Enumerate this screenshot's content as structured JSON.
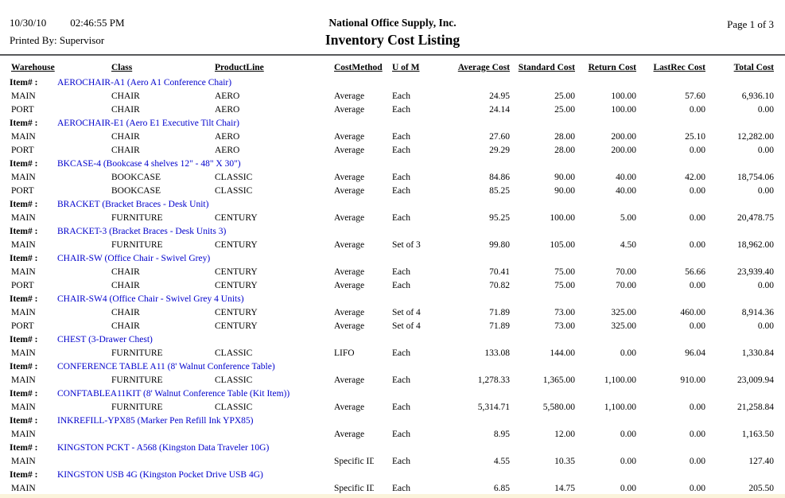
{
  "header": {
    "date": "10/30/10",
    "time": "02:46:55 PM",
    "printed_by": "Printed By: Supervisor",
    "company": "National Office Supply, Inc.",
    "title": "Inventory Cost Listing",
    "page": "Page 1 of 3"
  },
  "colors": {
    "item_link": "#0000CC",
    "rule": "#58595b",
    "bottom_strip": "#FBF3DB"
  },
  "table": {
    "item_label": "Item# :",
    "columns": [
      "Warehouse",
      "Class",
      "ProductLine",
      "CostMethod",
      "U of M",
      "Average Cost",
      "Standard Cost",
      "Return Cost",
      "LastRec Cost",
      "Total Cost"
    ],
    "groups": [
      {
        "item": "AEROCHAIR-A1 (Aero A1 Conference Chair)",
        "rows": [
          [
            "MAIN",
            "CHAIR",
            "AERO",
            "Average",
            "Each",
            "24.95",
            "25.00",
            "100.00",
            "57.60",
            "6,936.10"
          ],
          [
            "PORT",
            "CHAIR",
            "AERO",
            "Average",
            "Each",
            "24.14",
            "25.00",
            "100.00",
            "0.00",
            "0.00"
          ]
        ]
      },
      {
        "item": "AEROCHAIR-E1 (Aero E1 Executive Tilt Chair)",
        "rows": [
          [
            "MAIN",
            "CHAIR",
            "AERO",
            "Average",
            "Each",
            "27.60",
            "28.00",
            "200.00",
            "25.10",
            "12,282.00"
          ],
          [
            "PORT",
            "CHAIR",
            "AERO",
            "Average",
            "Each",
            "29.29",
            "28.00",
            "200.00",
            "0.00",
            "0.00"
          ]
        ]
      },
      {
        "item": "BKCASE-4 (Bookcase 4 shelves 12\" - 48\" X 30\")",
        "rows": [
          [
            "MAIN",
            "BOOKCASE",
            "CLASSIC",
            "Average",
            "Each",
            "84.86",
            "90.00",
            "40.00",
            "42.00",
            "18,754.06"
          ],
          [
            "PORT",
            "BOOKCASE",
            "CLASSIC",
            "Average",
            "Each",
            "85.25",
            "90.00",
            "40.00",
            "0.00",
            "0.00"
          ]
        ]
      },
      {
        "item": "BRACKET (Bracket Braces - Desk Unit)",
        "rows": [
          [
            "MAIN",
            "FURNITURE",
            "CENTURY",
            "Average",
            "Each",
            "95.25",
            "100.00",
            "5.00",
            "0.00",
            "20,478.75"
          ]
        ]
      },
      {
        "item": "BRACKET-3 (Bracket Braces - Desk Units 3)",
        "rows": [
          [
            "MAIN",
            "FURNITURE",
            "CENTURY",
            "Average",
            "Set of 3",
            "99.80",
            "105.00",
            "4.50",
            "0.00",
            "18,962.00"
          ]
        ]
      },
      {
        "item": "CHAIR-SW (Office Chair - Swivel Grey)",
        "rows": [
          [
            "MAIN",
            "CHAIR",
            "CENTURY",
            "Average",
            "Each",
            "70.41",
            "75.00",
            "70.00",
            "56.66",
            "23,939.40"
          ],
          [
            "PORT",
            "CHAIR",
            "CENTURY",
            "Average",
            "Each",
            "70.82",
            "75.00",
            "70.00",
            "0.00",
            "0.00"
          ]
        ]
      },
      {
        "item": "CHAIR-SW4 (Office Chair - Swivel Grey 4 Units)",
        "rows": [
          [
            "MAIN",
            "CHAIR",
            "CENTURY",
            "Average",
            "Set of 4",
            "71.89",
            "73.00",
            "325.00",
            "460.00",
            "8,914.36"
          ],
          [
            "PORT",
            "CHAIR",
            "CENTURY",
            "Average",
            "Set of 4",
            "71.89",
            "73.00",
            "325.00",
            "0.00",
            "0.00"
          ]
        ]
      },
      {
        "item": "CHEST (3-Drawer Chest)",
        "rows": [
          [
            "MAIN",
            "FURNITURE",
            "CLASSIC",
            "LIFO",
            "Each",
            "133.08",
            "144.00",
            "0.00",
            "96.04",
            "1,330.84"
          ]
        ]
      },
      {
        "item": "CONFERENCE TABLE A11 (8' Walnut Conference Table)",
        "rows": [
          [
            "MAIN",
            "FURNITURE",
            "CLASSIC",
            "Average",
            "Each",
            "1,278.33",
            "1,365.00",
            "1,100.00",
            "910.00",
            "23,009.94"
          ]
        ]
      },
      {
        "item": "CONFTABLEA11KIT (8' Walnut Conference Table (Kit Item))",
        "rows": [
          [
            "MAIN",
            "FURNITURE",
            "CLASSIC",
            "Average",
            "Each",
            "5,314.71",
            "5,580.00",
            "1,100.00",
            "0.00",
            "21,258.84"
          ]
        ]
      },
      {
        "item": "INKREFILL-YPX85 (Marker Pen Refill Ink YPX85)",
        "rows": [
          [
            "MAIN",
            "",
            "",
            "Average",
            "Each",
            "8.95",
            "12.00",
            "0.00",
            "0.00",
            "1,163.50"
          ]
        ]
      },
      {
        "item": "KINGSTON PCKT - A568 (Kingston Data Traveler 10G)",
        "rows": [
          [
            "MAIN",
            "",
            "",
            "Specific ID",
            "Each",
            "4.55",
            "10.35",
            "0.00",
            "0.00",
            "127.40"
          ]
        ]
      },
      {
        "item": "KINGSTON USB 4G (Kingston Pocket Drive USB 4G)",
        "rows": [
          [
            "MAIN",
            "",
            "",
            "Specific ID",
            "Each",
            "6.85",
            "14.75",
            "0.00",
            "0.00",
            "205.50"
          ]
        ]
      }
    ]
  }
}
